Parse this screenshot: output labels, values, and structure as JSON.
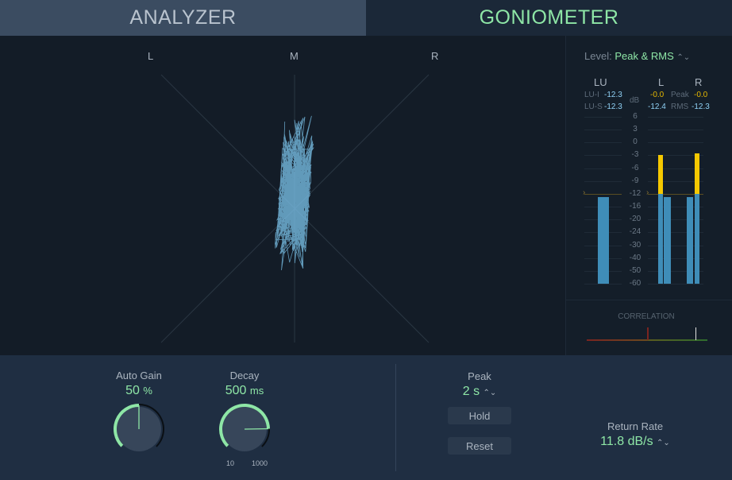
{
  "tabs": {
    "analyzer": "ANALYZER",
    "goniometer": "GONIOMETER",
    "active": "goniometer"
  },
  "goniometer": {
    "label_l": "L",
    "label_m": "M",
    "label_r": "R"
  },
  "meter": {
    "level_label": "Level:",
    "level_value": "Peak & RMS",
    "lu_header": "LU",
    "l_header": "L",
    "r_header": "R",
    "db_label": "dB",
    "lu_i_label": "LU-I",
    "lu_i_value": "-12.3",
    "lu_s_label": "LU-S",
    "lu_s_value": "-12.3",
    "peak_label": "Peak",
    "rms_label": "RMS",
    "l_peak": "-0.0",
    "r_peak": "-0.0",
    "l_rms": "-12.4",
    "r_rms": "-12.3",
    "scale": [
      "6",
      "3",
      "0",
      "-3",
      "-6",
      "-9",
      "-12",
      "-16",
      "-20",
      "-24",
      "-30",
      "-40",
      "-50",
      "-60"
    ],
    "target_db": -12,
    "bars": {
      "lu": -13,
      "l_peak": -3,
      "l_rms": -13,
      "r_rms": -13,
      "r_peak": -2.5
    },
    "correlation_label": "CORRELATION",
    "correlation_value": 0.8,
    "colors": {
      "rms": "#3f8db8",
      "peak": "#f5c800",
      "accent": "#8ee6a6"
    }
  },
  "controls": {
    "auto_gain": {
      "label": "Auto Gain",
      "value": "50",
      "unit": "%",
      "fraction": 0.5
    },
    "decay": {
      "label": "Decay",
      "value": "500",
      "unit": "ms",
      "min": "10",
      "max": "1000",
      "fraction": 0.83
    },
    "peak": {
      "label": "Peak",
      "value": "2 s"
    },
    "hold": "Hold",
    "reset": "Reset",
    "return_rate": {
      "label": "Return Rate",
      "value": "11.8 dB/s"
    }
  }
}
